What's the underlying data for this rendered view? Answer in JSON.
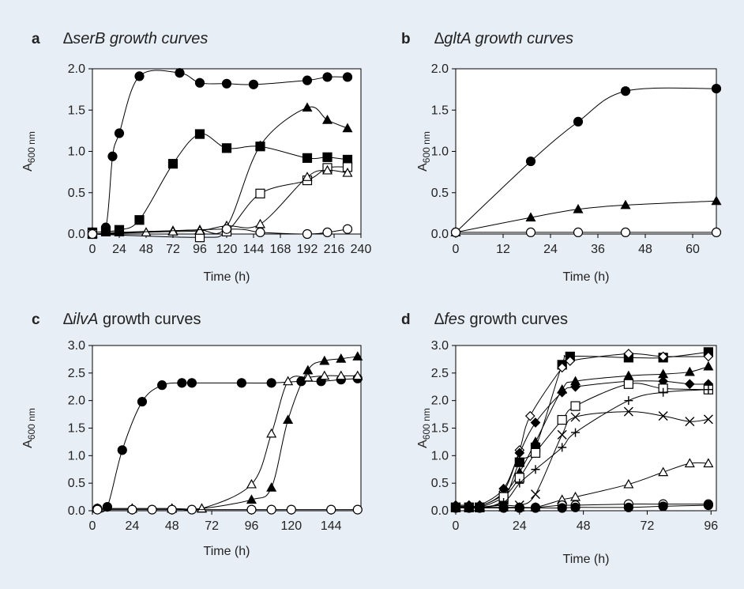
{
  "chart_data": [
    {
      "type": "line",
      "panel_label": "a",
      "title_prefix": "∆",
      "title_gene": "serB",
      "title_suffix": " growth curves",
      "title_suffix_italic": true,
      "xlabel": "Time (h)",
      "ylabel_main": "A",
      "ylabel_sub": "600 nm",
      "xlim": [
        0,
        240
      ],
      "ylim": [
        0,
        2.0
      ],
      "xticks": [
        "0",
        "24",
        "48",
        "72",
        "96",
        "120",
        "144",
        "168",
        "192",
        "216",
        "240"
      ],
      "yticks": [
        "0.0",
        "0.5",
        "1.0",
        "1.5",
        "2.0"
      ],
      "series": [
        {
          "marker": "filled-circle",
          "x": [
            0,
            12,
            18,
            24,
            42,
            78,
            96,
            120,
            144,
            192,
            210,
            228
          ],
          "y": [
            0.02,
            0.08,
            0.94,
            1.22,
            1.91,
            1.95,
            1.83,
            1.82,
            1.81,
            1.86,
            1.9,
            1.9
          ]
        },
        {
          "marker": "filled-square",
          "x": [
            0,
            12,
            24,
            42,
            72,
            96,
            120,
            150,
            192,
            210,
            228
          ],
          "y": [
            0.02,
            0.03,
            0.05,
            0.17,
            0.85,
            1.21,
            1.04,
            1.06,
            0.92,
            0.93,
            0.9
          ]
        },
        {
          "marker": "filled-triangle",
          "x": [
            0,
            24,
            72,
            96,
            120,
            150,
            192,
            210,
            228
          ],
          "y": [
            0.0,
            0.02,
            0.04,
            0.05,
            0.09,
            1.07,
            1.53,
            1.38,
            1.28
          ]
        },
        {
          "marker": "open-square",
          "x": [
            0,
            96,
            120,
            150,
            192,
            210,
            228
          ],
          "y": [
            0.0,
            -0.04,
            0.03,
            0.49,
            0.65,
            0.8,
            0.81
          ]
        },
        {
          "marker": "open-triangle",
          "x": [
            0,
            48,
            72,
            96,
            120,
            150,
            192,
            210,
            228
          ],
          "y": [
            0.0,
            0.02,
            0.03,
            0.04,
            0.1,
            0.12,
            0.69,
            0.77,
            0.74
          ]
        },
        {
          "marker": "open-circle",
          "x": [
            0,
            120,
            150,
            192,
            210,
            228
          ],
          "y": [
            0.0,
            0.06,
            0.02,
            0.0,
            0.02,
            0.06
          ]
        }
      ]
    },
    {
      "type": "line",
      "panel_label": "b",
      "title_prefix": "∆",
      "title_gene": "gltA",
      "title_suffix": " growth curves",
      "title_suffix_italic": true,
      "xlabel": "Time (h)",
      "ylabel_main": "A",
      "ylabel_sub": "600 nm",
      "xlim": [
        0,
        66
      ],
      "ylim": [
        0,
        2.0
      ],
      "xticks": [
        "0",
        "12",
        "24",
        "36",
        "48",
        "60"
      ],
      "yticks": [
        "0.0",
        "0.5",
        "1.0",
        "1.5",
        "2.0"
      ],
      "series": [
        {
          "marker": "filled-circle",
          "x": [
            0,
            19,
            31,
            43,
            66
          ],
          "y": [
            0.02,
            0.88,
            1.36,
            1.73,
            1.76
          ]
        },
        {
          "marker": "filled-triangle",
          "x": [
            0,
            19,
            31,
            43,
            66
          ],
          "y": [
            0.02,
            0.2,
            0.3,
            0.35,
            0.4
          ]
        },
        {
          "marker": "open-circle",
          "x": [
            0,
            19,
            31,
            43,
            66
          ],
          "y": [
            0.02,
            0.02,
            0.02,
            0.02,
            0.02
          ]
        }
      ]
    },
    {
      "type": "line",
      "panel_label": "c",
      "title_prefix": "∆",
      "title_gene": "ilvA",
      "title_suffix": " growth curves",
      "title_suffix_italic": false,
      "xlabel": "Time (h)",
      "ylabel_main": "A",
      "ylabel_sub": "600 nm",
      "xlim": [
        0,
        162
      ],
      "ylim": [
        0,
        3.0
      ],
      "xticks": [
        "0",
        "24",
        "48",
        "72",
        "96",
        "120",
        "144"
      ],
      "yticks": [
        "0.0",
        "0.5",
        "1.0",
        "1.5",
        "2.0",
        "2.5",
        "3.0"
      ],
      "series": [
        {
          "marker": "filled-circle",
          "x": [
            3,
            9,
            18,
            30,
            42,
            54,
            60,
            90,
            108,
            126,
            138,
            150,
            160
          ],
          "y": [
            0.04,
            0.07,
            1.1,
            1.98,
            2.28,
            2.32,
            2.32,
            2.32,
            2.32,
            2.35,
            2.35,
            2.38,
            2.4
          ]
        },
        {
          "marker": "filled-triangle",
          "x": [
            3,
            24,
            48,
            66,
            96,
            108,
            118,
            130,
            140,
            150,
            160
          ],
          "y": [
            0.04,
            0.04,
            0.04,
            0.04,
            0.2,
            0.42,
            1.65,
            2.55,
            2.72,
            2.76,
            2.8
          ]
        },
        {
          "marker": "open-triangle",
          "x": [
            3,
            24,
            48,
            66,
            96,
            108,
            118,
            130,
            140,
            150,
            160
          ],
          "y": [
            0.04,
            0.04,
            0.04,
            0.04,
            0.48,
            1.4,
            2.35,
            2.42,
            2.45,
            2.45,
            2.45
          ]
        },
        {
          "marker": "open-circle",
          "x": [
            3,
            24,
            36,
            48,
            60,
            96,
            108,
            120,
            144,
            160
          ],
          "y": [
            0.02,
            0.02,
            0.02,
            0.02,
            0.02,
            0.02,
            0.02,
            0.02,
            0.02,
            0.02
          ]
        }
      ]
    },
    {
      "type": "line",
      "panel_label": "d",
      "title_prefix": "∆",
      "title_gene": "fes",
      "title_suffix": " growth curves",
      "title_suffix_italic": false,
      "xlabel": "Time (h)",
      "ylabel_main": "A",
      "ylabel_sub": "600 nm",
      "xlim": [
        0,
        98
      ],
      "ylim": [
        0,
        3.0
      ],
      "xticks": [
        "0",
        "24",
        "48",
        "72",
        "96"
      ],
      "yticks": [
        "0.0",
        "0.5",
        "1.0",
        "1.5",
        "2.0",
        "2.5",
        "3.0"
      ],
      "series": [
        {
          "marker": "filled-square",
          "x": [
            0,
            5,
            9,
            18,
            24,
            30,
            40,
            43,
            65,
            78,
            95
          ],
          "y": [
            0.06,
            0.06,
            0.06,
            0.2,
            0.88,
            1.15,
            2.65,
            2.8,
            2.78,
            2.78,
            2.88
          ]
        },
        {
          "marker": "open-diamond",
          "x": [
            0,
            5,
            9,
            18,
            24,
            28,
            40,
            43,
            65,
            78,
            95
          ],
          "y": [
            0.08,
            0.08,
            0.08,
            0.35,
            1.1,
            1.72,
            2.6,
            2.72,
            2.85,
            2.8,
            2.8
          ]
        },
        {
          "marker": "filled-triangle",
          "x": [
            0,
            5,
            9,
            18,
            24,
            30,
            40,
            45,
            65,
            78,
            88,
            95
          ],
          "y": [
            0.08,
            0.08,
            0.08,
            0.3,
            0.7,
            1.25,
            2.2,
            2.35,
            2.45,
            2.48,
            2.52,
            2.62
          ]
        },
        {
          "marker": "filled-diamond",
          "x": [
            0,
            5,
            9,
            18,
            24,
            30,
            40,
            45,
            65,
            78,
            88,
            95
          ],
          "y": [
            0.1,
            0.1,
            0.1,
            0.4,
            1.05,
            1.6,
            2.15,
            2.25,
            2.35,
            2.35,
            2.3,
            2.3
          ]
        },
        {
          "marker": "open-square",
          "x": [
            0,
            5,
            9,
            18,
            24,
            30,
            40,
            45,
            65,
            78,
            95
          ],
          "y": [
            0.06,
            0.06,
            0.06,
            0.25,
            0.6,
            1.05,
            1.65,
            1.9,
            2.3,
            2.22,
            2.2
          ]
        },
        {
          "marker": "plus",
          "x": [
            0,
            5,
            9,
            18,
            24,
            30,
            40,
            45,
            65,
            78,
            95
          ],
          "y": [
            0.06,
            0.06,
            0.06,
            0.15,
            0.5,
            0.75,
            1.15,
            1.42,
            2.0,
            2.15,
            2.2
          ]
        },
        {
          "marker": "cross",
          "x": [
            0,
            5,
            9,
            18,
            24,
            30,
            40,
            45,
            65,
            78,
            88,
            95
          ],
          "y": [
            0.06,
            0.06,
            0.06,
            0.1,
            0.1,
            0.3,
            1.38,
            1.7,
            1.8,
            1.72,
            1.62,
            1.66
          ]
        },
        {
          "marker": "open-triangle",
          "x": [
            0,
            5,
            9,
            18,
            24,
            30,
            40,
            45,
            65,
            78,
            88,
            95
          ],
          "y": [
            0.06,
            0.06,
            0.06,
            0.06,
            0.06,
            0.06,
            0.2,
            0.25,
            0.48,
            0.7,
            0.86,
            0.86
          ]
        },
        {
          "marker": "open-circle",
          "x": [
            0,
            5,
            9,
            18,
            24,
            30,
            40,
            45,
            65,
            78,
            95
          ],
          "y": [
            0.06,
            0.06,
            0.06,
            0.06,
            0.06,
            0.06,
            0.1,
            0.1,
            0.12,
            0.12,
            0.12
          ]
        },
        {
          "marker": "filled-circle",
          "x": [
            0,
            5,
            9,
            18,
            24,
            30,
            40,
            45,
            65,
            78,
            95
          ],
          "y": [
            0.05,
            0.05,
            0.05,
            0.05,
            0.05,
            0.05,
            0.05,
            0.06,
            0.06,
            0.08,
            0.1
          ]
        }
      ]
    }
  ]
}
